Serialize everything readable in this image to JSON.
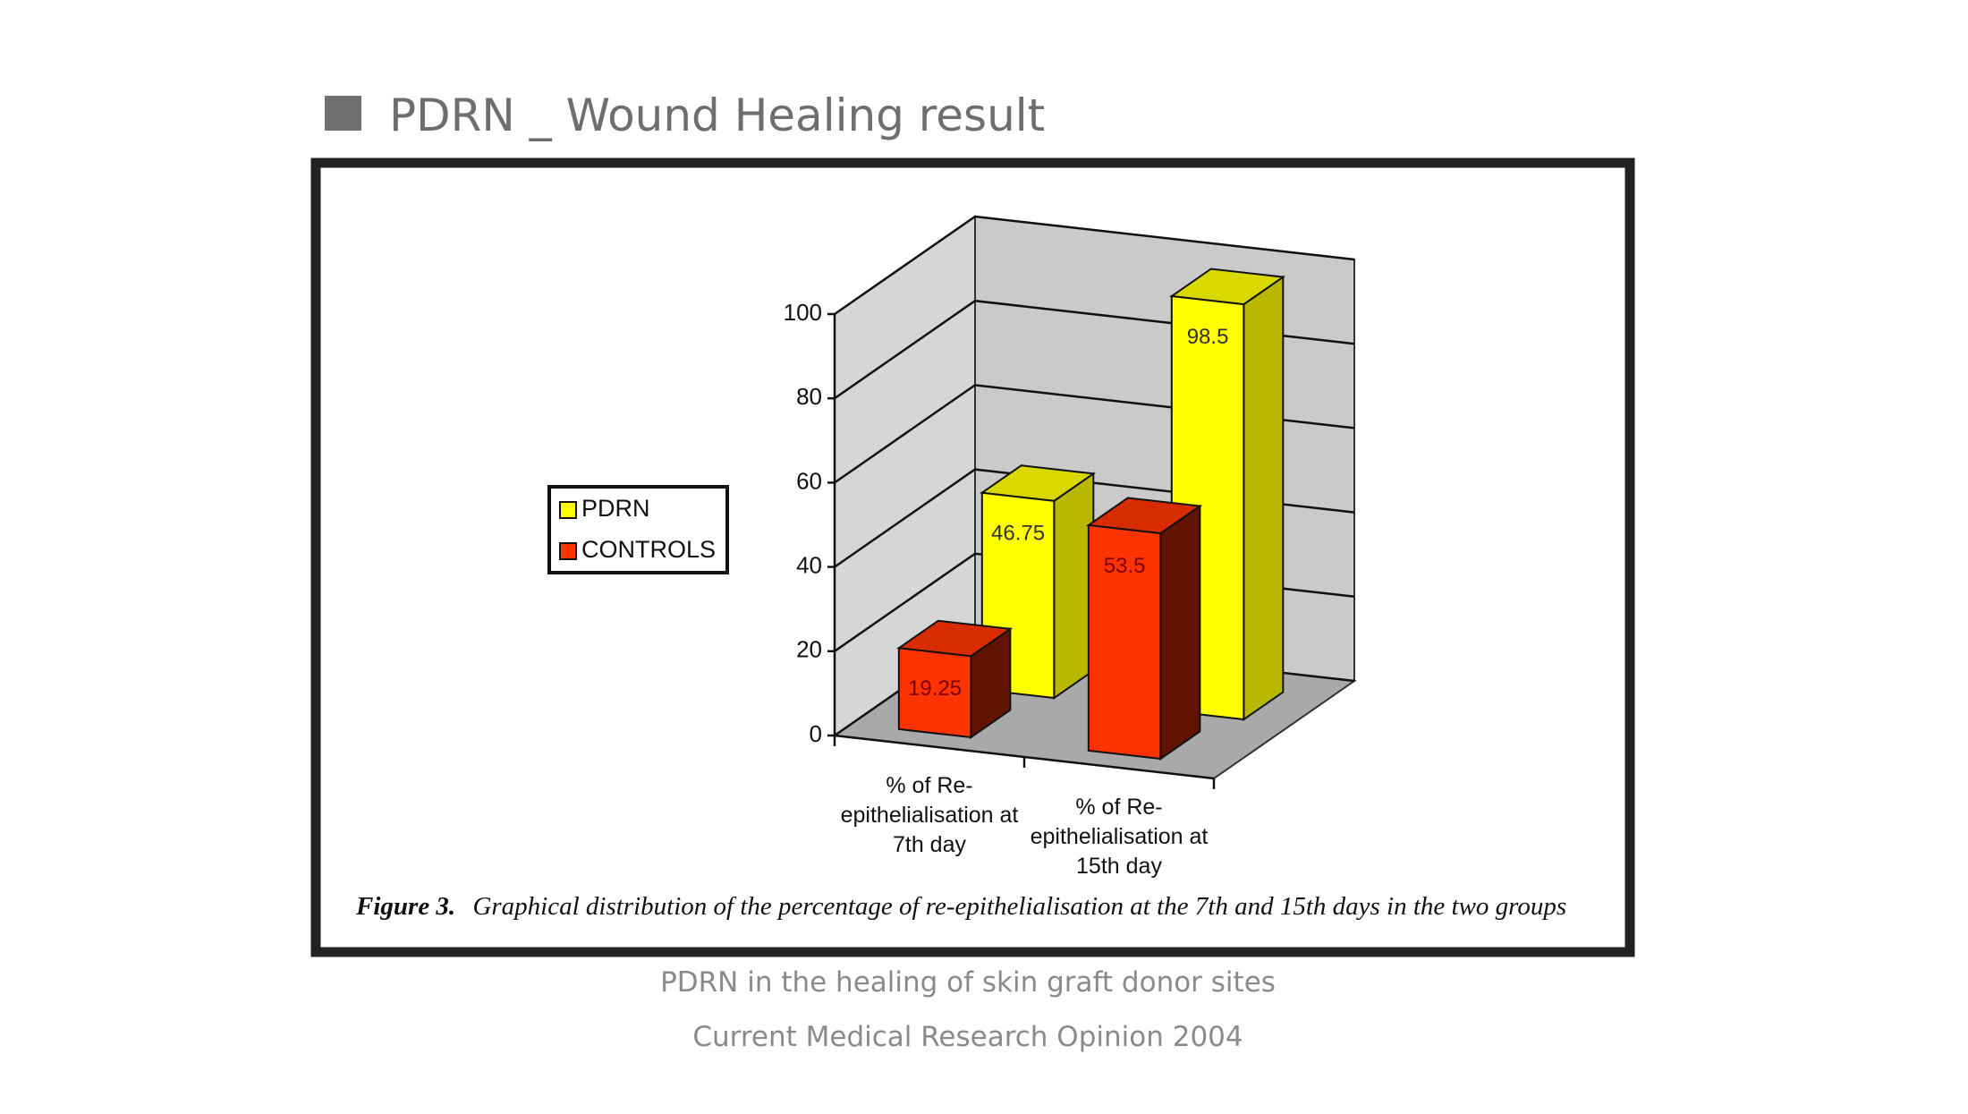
{
  "slide": {
    "title": "PDRN _ Wound Healing result",
    "source": [
      "PDRN in the healing of skin graft donor sites",
      "Current Medical Research Opinion 2004"
    ]
  },
  "chart_data": {
    "type": "bar3d",
    "categories": [
      "% of Re-epithelialisation at 7th day",
      "% of Re-epithelialisation at 15th day"
    ],
    "series": [
      {
        "name": "PDRN",
        "color": "#ffff00",
        "values": [
          46.75,
          98.5
        ]
      },
      {
        "name": "CONTROLS",
        "color": "#ff3300",
        "values": [
          19.25,
          53.5
        ]
      }
    ],
    "ylim": [
      0,
      100
    ],
    "yticks": [
      0,
      20,
      40,
      60,
      80,
      100
    ],
    "grid": true,
    "legend": "left",
    "caption_label": "Figure 3.",
    "caption": "Graphical distribution of the percentage of re-epithelialisation at the 7th and 15th days in the two groups"
  }
}
